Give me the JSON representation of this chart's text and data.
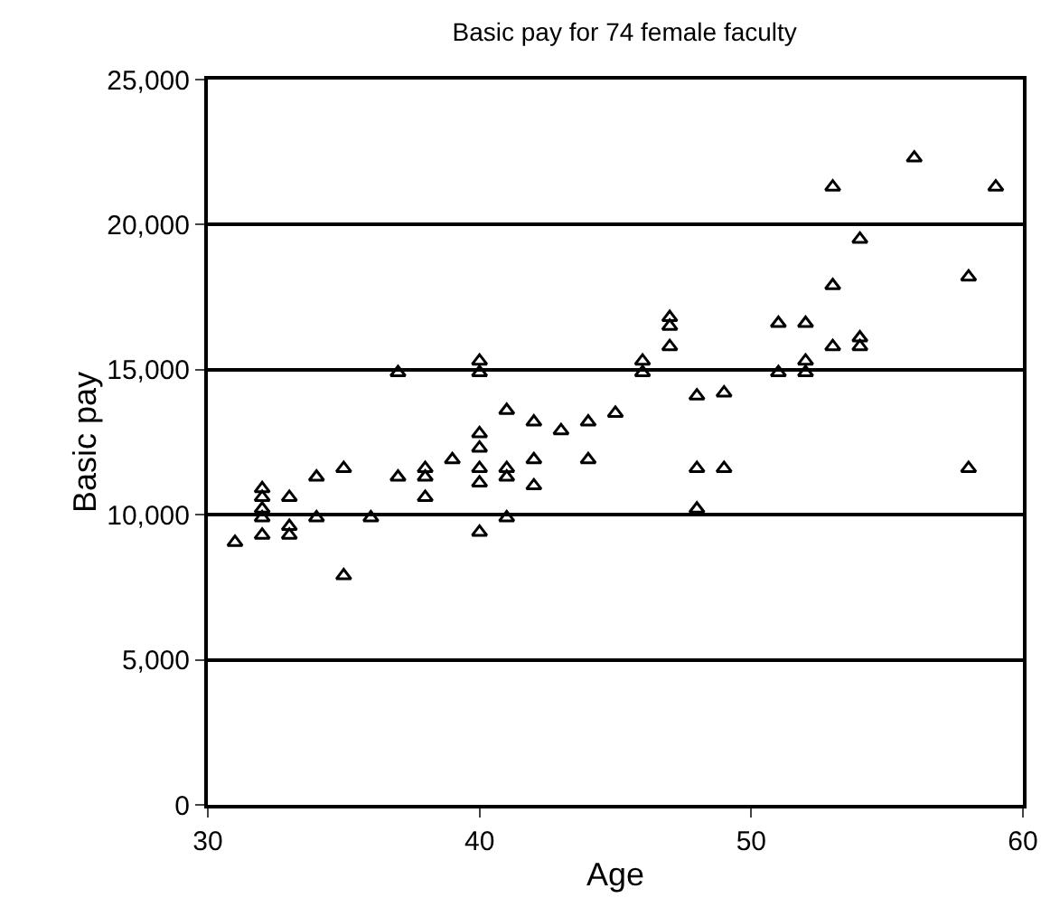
{
  "chart_data": {
    "type": "scatter",
    "title": "Basic pay for 74 female faculty",
    "xlabel": "Age",
    "ylabel": "Basic pay",
    "x": [
      31,
      32,
      32,
      32,
      32,
      32,
      33,
      33,
      33,
      34,
      34,
      35,
      35,
      36,
      37,
      37,
      38,
      38,
      38,
      39,
      40,
      40,
      40,
      40,
      40,
      40,
      40,
      41,
      41,
      41,
      41,
      42,
      42,
      42,
      43,
      44,
      44,
      45,
      46,
      46,
      47,
      47,
      47,
      48,
      48,
      48,
      49,
      49,
      51,
      51,
      52,
      52,
      52,
      53,
      53,
      53,
      54,
      54,
      54,
      56,
      58,
      58,
      59
    ],
    "values": [
      9050,
      10900,
      10600,
      10200,
      9900,
      9300,
      10600,
      9600,
      9300,
      11300,
      9900,
      11600,
      7900,
      9900,
      14900,
      11300,
      11600,
      11300,
      10600,
      11900,
      15300,
      14900,
      12800,
      12300,
      11600,
      11100,
      9400,
      13600,
      11600,
      11300,
      9900,
      13200,
      11900,
      11000,
      12900,
      13200,
      11900,
      13500,
      15300,
      14900,
      16800,
      16500,
      15800,
      14100,
      11600,
      10200,
      14200,
      11600,
      16600,
      14900,
      16600,
      15300,
      14900,
      21300,
      17900,
      15800,
      19500,
      16100,
      15800,
      22300,
      18200,
      11600,
      21300
    ],
    "color": "#000000",
    "marker": "triangle",
    "xlim": [
      30,
      60
    ],
    "xticks": [
      30,
      40,
      50,
      60
    ],
    "ylim": [
      0,
      25000
    ],
    "yticks": [
      {
        "value": 0,
        "label": "0"
      },
      {
        "value": 5000,
        "label": "5,000"
      },
      {
        "value": 10000,
        "label": "10,000"
      },
      {
        "value": 15000,
        "label": "15,000"
      },
      {
        "value": 20000,
        "label": "20,000"
      },
      {
        "value": 25000,
        "label": "25,000"
      }
    ],
    "grid": "y",
    "legend": false
  }
}
